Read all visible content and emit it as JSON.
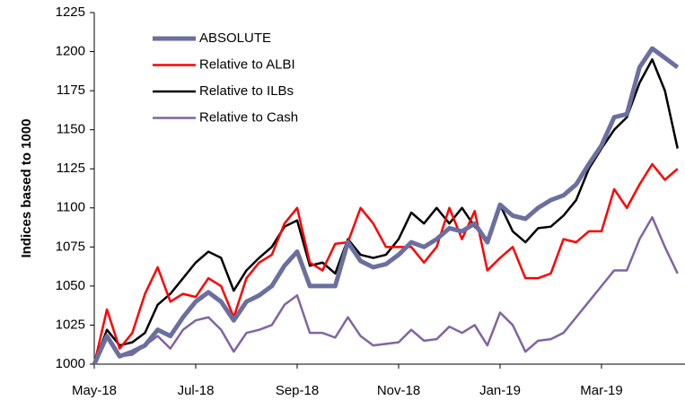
{
  "chart_data": {
    "type": "line",
    "y_label": "Indices based to 1000",
    "categories": [
      "May-18",
      null,
      null,
      null,
      null,
      null,
      null,
      null,
      "Jul-18",
      null,
      null,
      null,
      null,
      null,
      null,
      null,
      "Sep-18",
      null,
      null,
      null,
      null,
      null,
      null,
      null,
      "Nov-18",
      null,
      null,
      null,
      null,
      null,
      null,
      null,
      "Jan-19",
      null,
      null,
      null,
      null,
      null,
      null,
      null,
      "Mar-19",
      null,
      null,
      null,
      null,
      null,
      null
    ],
    "ylim": [
      1000,
      1225
    ],
    "yticks": [
      1000,
      1025,
      1050,
      1075,
      1100,
      1125,
      1150,
      1175,
      1200,
      1225
    ],
    "legend": "upper-left",
    "series": [
      {
        "name": "ABSOLUTE",
        "color": "#6b6f9f",
        "values": [
          1000,
          1018,
          1005,
          1008,
          1012,
          1022,
          1018,
          1030,
          1040,
          1046,
          1040,
          1028,
          1040,
          1044,
          1050,
          1063,
          1072,
          1050,
          1050,
          1050,
          1078,
          1066,
          1062,
          1064,
          1070,
          1078,
          1075,
          1080,
          1087,
          1085,
          1090,
          1078,
          1102,
          1095,
          1093,
          1100,
          1105,
          1108,
          1115,
          1128,
          1140,
          1158,
          1160,
          1190,
          1202,
          1196,
          1190
        ]
      },
      {
        "name": "Relative to ALBI",
        "color": "#ff0000",
        "values": [
          1000,
          1035,
          1010,
          1020,
          1045,
          1062,
          1040,
          1045,
          1043,
          1055,
          1050,
          1030,
          1055,
          1065,
          1070,
          1090,
          1100,
          1065,
          1060,
          1077,
          1078,
          1100,
          1090,
          1075,
          1075,
          1075,
          1065,
          1075,
          1100,
          1080,
          1098,
          1060,
          1068,
          1075,
          1055,
          1055,
          1058,
          1080,
          1078,
          1085,
          1085,
          1112,
          1100,
          1115,
          1128,
          1118,
          1125
        ]
      },
      {
        "name": "Relative to ILBs",
        "color": "#000000",
        "values": [
          1000,
          1022,
          1012,
          1014,
          1020,
          1038,
          1045,
          1055,
          1065,
          1072,
          1068,
          1047,
          1060,
          1068,
          1075,
          1088,
          1092,
          1063,
          1065,
          1058,
          1080,
          1070,
          1068,
          1070,
          1080,
          1097,
          1090,
          1100,
          1090,
          1100,
          1088,
          1080,
          1102,
          1085,
          1078,
          1087,
          1088,
          1095,
          1105,
          1125,
          1138,
          1150,
          1158,
          1180,
          1195,
          1175,
          1138
        ]
      },
      {
        "name": "Relative to Cash",
        "color": "#8064a2",
        "values": [
          1000,
          1018,
          1005,
          1006,
          1012,
          1018,
          1010,
          1022,
          1028,
          1030,
          1022,
          1008,
          1020,
          1022,
          1025,
          1038,
          1044,
          1020,
          1020,
          1017,
          1030,
          1018,
          1012,
          1013,
          1014,
          1022,
          1015,
          1016,
          1024,
          1020,
          1025,
          1012,
          1033,
          1025,
          1008,
          1015,
          1016,
          1020,
          1030,
          1040,
          1050,
          1060,
          1060,
          1080,
          1094,
          1075,
          1058
        ]
      }
    ]
  }
}
